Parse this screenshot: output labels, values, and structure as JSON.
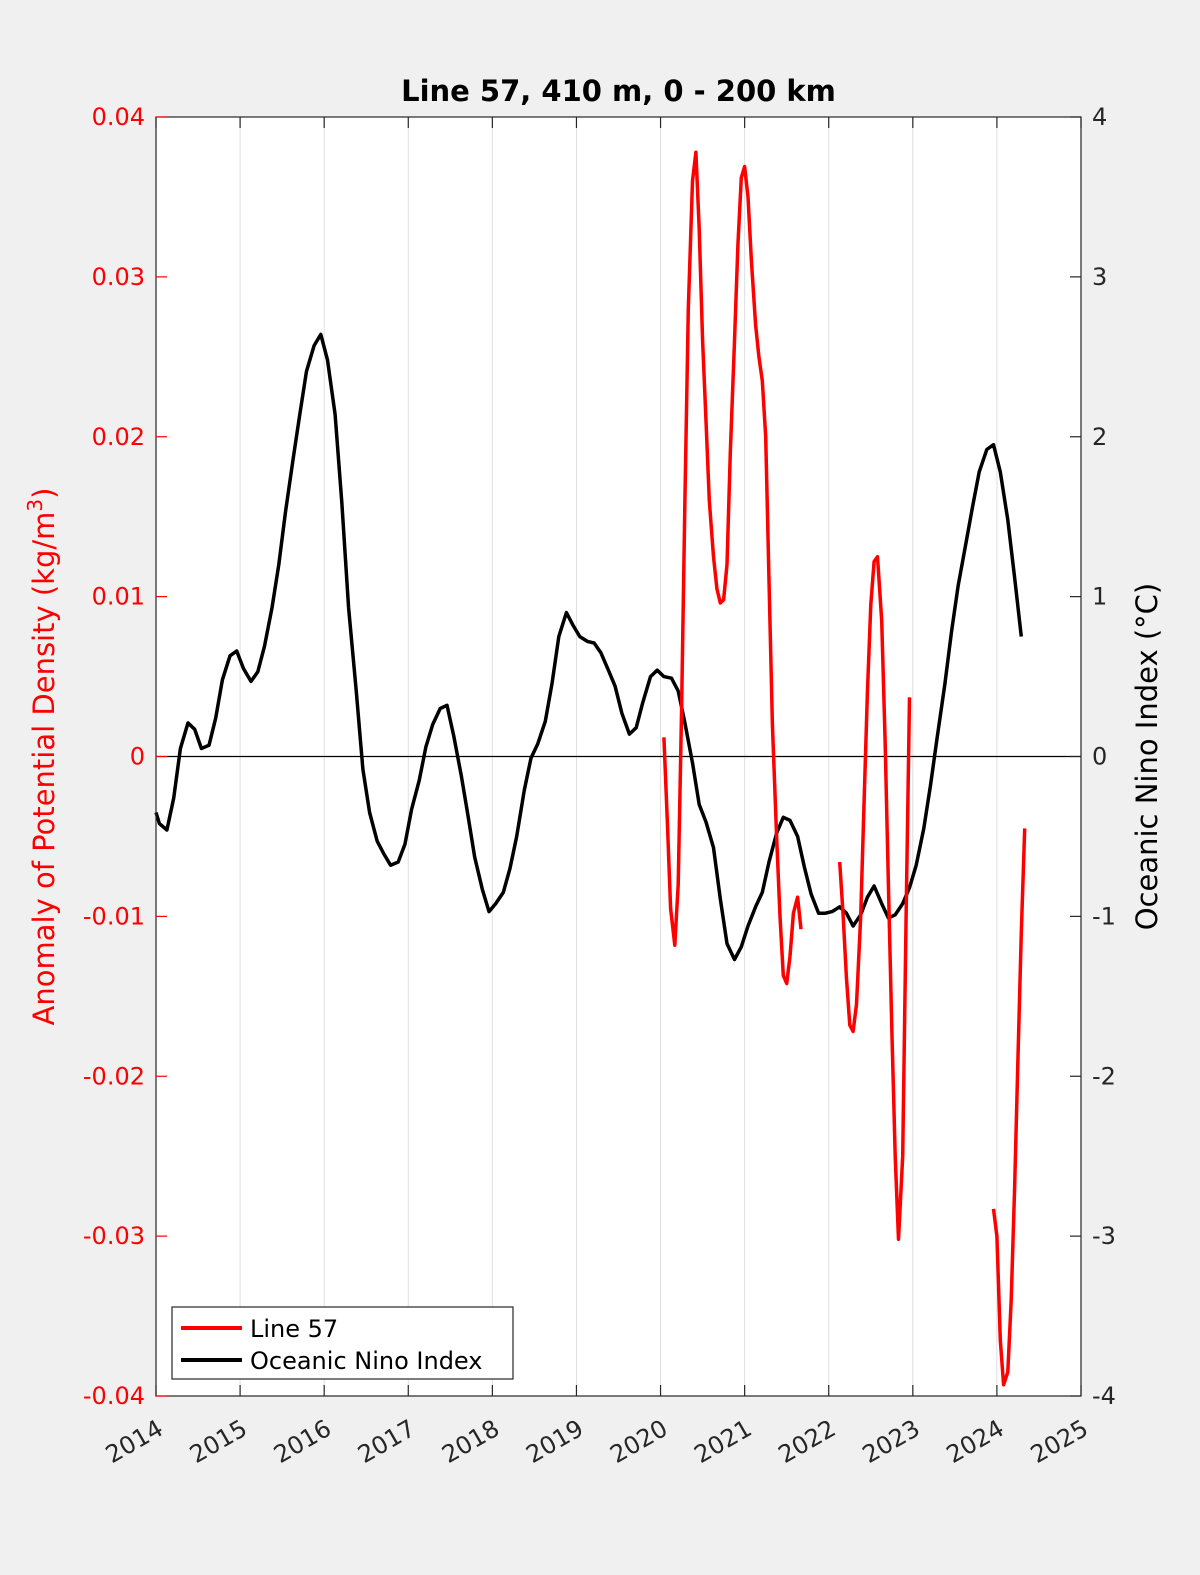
{
  "chart_data": {
    "type": "line",
    "title": "Line 57, 410 m, 0 - 200 km",
    "xlabel": "",
    "ylabel_left": "Anomaly of Potential Density (kg/m",
    "ylabel_left_sup": "3",
    "ylabel_left_close": ")",
    "ylabel_right": "Oceanic Nino Index (°C)",
    "xlim": [
      2014,
      2025
    ],
    "ylim_left": [
      -0.04,
      0.04
    ],
    "ylim_right": [
      -4,
      4
    ],
    "x_ticks": [
      "2014",
      "2015",
      "2016",
      "2017",
      "2018",
      "2019",
      "2020",
      "2021",
      "2022",
      "2023",
      "2024",
      "2025"
    ],
    "y_left_ticks": [
      "-0.04",
      "-0.03",
      "-0.02",
      "-0.01",
      "0",
      "0.01",
      "0.02",
      "0.03",
      "0.04"
    ],
    "y_right_ticks": [
      "-4",
      "-3",
      "-2",
      "-1",
      "0",
      "1",
      "2",
      "3",
      "4"
    ],
    "grid": "x-major",
    "legend_position": "bottom-left",
    "colors": {
      "line57": "#ff0000",
      "oni": "#000000",
      "left_axis": "#ff0000",
      "right_axis": "#000000",
      "zero_line": "#000000"
    },
    "series": [
      {
        "name": "Line 57",
        "axis": "left",
        "segments": [
          [
            [
              2020.04,
              0.0012
            ],
            [
              2020.08,
              -0.004
            ],
            [
              2020.12,
              -0.0095
            ],
            [
              2020.17,
              -0.0118
            ],
            [
              2020.21,
              -0.008
            ],
            [
              2020.25,
              0.003
            ],
            [
              2020.29,
              0.016
            ],
            [
              2020.33,
              0.028
            ],
            [
              2020.38,
              0.036
            ],
            [
              2020.42,
              0.0378
            ],
            [
              2020.46,
              0.033
            ],
            [
              2020.5,
              0.026
            ],
            [
              2020.54,
              0.021
            ],
            [
              2020.58,
              0.016
            ],
            [
              2020.63,
              0.0125
            ],
            [
              2020.67,
              0.0105
            ],
            [
              2020.71,
              0.0096
            ],
            [
              2020.75,
              0.0098
            ],
            [
              2020.79,
              0.012
            ],
            [
              2020.83,
              0.019
            ],
            [
              2020.88,
              0.026
            ],
            [
              2020.92,
              0.032
            ],
            [
              2020.96,
              0.0362
            ],
            [
              2021.0,
              0.0369
            ],
            [
              2021.04,
              0.035
            ],
            [
              2021.08,
              0.031
            ],
            [
              2021.13,
              0.027
            ],
            [
              2021.17,
              0.025
            ],
            [
              2021.21,
              0.0235
            ],
            [
              2021.25,
              0.02
            ],
            [
              2021.29,
              0.011
            ],
            [
              2021.33,
              0.002
            ],
            [
              2021.38,
              -0.005
            ],
            [
              2021.42,
              -0.01
            ],
            [
              2021.46,
              -0.0137
            ],
            [
              2021.5,
              -0.0142
            ],
            [
              2021.54,
              -0.0125
            ],
            [
              2021.58,
              -0.0098
            ],
            [
              2021.63,
              -0.0088
            ],
            [
              2021.67,
              -0.0108
            ]
          ],
          [
            [
              2022.13,
              -0.0066
            ],
            [
              2022.17,
              -0.0098
            ],
            [
              2022.21,
              -0.0138
            ],
            [
              2022.25,
              -0.0168
            ],
            [
              2022.29,
              -0.0172
            ],
            [
              2022.33,
              -0.0155
            ],
            [
              2022.38,
              -0.01
            ],
            [
              2022.42,
              -0.003
            ],
            [
              2022.46,
              0.004
            ],
            [
              2022.5,
              0.0095
            ],
            [
              2022.54,
              0.0122
            ],
            [
              2022.58,
              0.0125
            ],
            [
              2022.63,
              0.0085
            ],
            [
              2022.67,
              0.001
            ],
            [
              2022.71,
              -0.008
            ],
            [
              2022.75,
              -0.017
            ],
            [
              2022.79,
              -0.025
            ],
            [
              2022.83,
              -0.0302
            ],
            [
              2022.88,
              -0.025
            ],
            [
              2022.92,
              -0.01
            ],
            [
              2022.96,
              0.0037
            ]
          ],
          [
            [
              2023.96,
              -0.0283
            ],
            [
              2024.0,
              -0.03
            ],
            [
              2024.04,
              -0.0365
            ],
            [
              2024.08,
              -0.0393
            ],
            [
              2024.13,
              -0.0385
            ],
            [
              2024.17,
              -0.034
            ],
            [
              2024.21,
              -0.027
            ],
            [
              2024.25,
              -0.019
            ],
            [
              2024.29,
              -0.011
            ],
            [
              2024.33,
              -0.0045
            ]
          ]
        ]
      },
      {
        "name": "Oceanic Nino Index",
        "axis": "right",
        "points": [
          [
            2014.0,
            -0.35
          ],
          [
            2014.04,
            -0.42
          ],
          [
            2014.13,
            -0.46
          ],
          [
            2014.21,
            -0.26
          ],
          [
            2014.29,
            0.05
          ],
          [
            2014.38,
            0.21
          ],
          [
            2014.46,
            0.17
          ],
          [
            2014.54,
            0.05
          ],
          [
            2014.63,
            0.07
          ],
          [
            2014.71,
            0.24
          ],
          [
            2014.79,
            0.48
          ],
          [
            2014.88,
            0.63
          ],
          [
            2014.96,
            0.66
          ],
          [
            2015.04,
            0.55
          ],
          [
            2015.13,
            0.47
          ],
          [
            2015.21,
            0.53
          ],
          [
            2015.29,
            0.69
          ],
          [
            2015.38,
            0.93
          ],
          [
            2015.46,
            1.2
          ],
          [
            2015.54,
            1.53
          ],
          [
            2015.63,
            1.86
          ],
          [
            2015.71,
            2.14
          ],
          [
            2015.79,
            2.41
          ],
          [
            2015.88,
            2.57
          ],
          [
            2015.96,
            2.64
          ],
          [
            2016.04,
            2.48
          ],
          [
            2016.13,
            2.14
          ],
          [
            2016.21,
            1.59
          ],
          [
            2016.29,
            0.93
          ],
          [
            2016.38,
            0.42
          ],
          [
            2016.46,
            -0.08
          ],
          [
            2016.54,
            -0.35
          ],
          [
            2016.63,
            -0.53
          ],
          [
            2016.71,
            -0.61
          ],
          [
            2016.79,
            -0.68
          ],
          [
            2016.88,
            -0.66
          ],
          [
            2016.96,
            -0.55
          ],
          [
            2017.04,
            -0.33
          ],
          [
            2017.13,
            -0.15
          ],
          [
            2017.21,
            0.06
          ],
          [
            2017.29,
            0.2
          ],
          [
            2017.38,
            0.3
          ],
          [
            2017.46,
            0.32
          ],
          [
            2017.54,
            0.13
          ],
          [
            2017.63,
            -0.12
          ],
          [
            2017.71,
            -0.37
          ],
          [
            2017.79,
            -0.63
          ],
          [
            2017.88,
            -0.83
          ],
          [
            2017.96,
            -0.97
          ],
          [
            2018.04,
            -0.92
          ],
          [
            2018.13,
            -0.85
          ],
          [
            2018.21,
            -0.7
          ],
          [
            2018.29,
            -0.5
          ],
          [
            2018.38,
            -0.21
          ],
          [
            2018.46,
            -0.01
          ],
          [
            2018.54,
            0.08
          ],
          [
            2018.63,
            0.22
          ],
          [
            2018.71,
            0.46
          ],
          [
            2018.79,
            0.75
          ],
          [
            2018.88,
            0.9
          ],
          [
            2018.96,
            0.82
          ],
          [
            2019.04,
            0.75
          ],
          [
            2019.13,
            0.72
          ],
          [
            2019.21,
            0.71
          ],
          [
            2019.29,
            0.65
          ],
          [
            2019.38,
            0.54
          ],
          [
            2019.46,
            0.44
          ],
          [
            2019.54,
            0.27
          ],
          [
            2019.63,
            0.14
          ],
          [
            2019.71,
            0.18
          ],
          [
            2019.79,
            0.34
          ],
          [
            2019.88,
            0.5
          ],
          [
            2019.96,
            0.54
          ],
          [
            2020.04,
            0.5
          ],
          [
            2020.13,
            0.49
          ],
          [
            2020.21,
            0.41
          ],
          [
            2020.29,
            0.21
          ],
          [
            2020.38,
            -0.04
          ],
          [
            2020.46,
            -0.3
          ],
          [
            2020.54,
            -0.41
          ],
          [
            2020.63,
            -0.57
          ],
          [
            2020.71,
            -0.89
          ],
          [
            2020.79,
            -1.17
          ],
          [
            2020.88,
            -1.27
          ],
          [
            2020.96,
            -1.19
          ],
          [
            2021.04,
            -1.06
          ],
          [
            2021.13,
            -0.94
          ],
          [
            2021.21,
            -0.85
          ],
          [
            2021.29,
            -0.66
          ],
          [
            2021.38,
            -0.48
          ],
          [
            2021.46,
            -0.38
          ],
          [
            2021.54,
            -0.4
          ],
          [
            2021.63,
            -0.5
          ],
          [
            2021.71,
            -0.69
          ],
          [
            2021.79,
            -0.86
          ],
          [
            2021.88,
            -0.98
          ],
          [
            2021.96,
            -0.98
          ],
          [
            2022.04,
            -0.97
          ],
          [
            2022.13,
            -0.94
          ],
          [
            2022.21,
            -0.98
          ],
          [
            2022.29,
            -1.06
          ],
          [
            2022.38,
            -0.99
          ],
          [
            2022.46,
            -0.88
          ],
          [
            2022.54,
            -0.81
          ],
          [
            2022.63,
            -0.92
          ],
          [
            2022.71,
            -1.01
          ],
          [
            2022.79,
            -0.99
          ],
          [
            2022.88,
            -0.92
          ],
          [
            2022.96,
            -0.82
          ],
          [
            2023.04,
            -0.68
          ],
          [
            2023.13,
            -0.45
          ],
          [
            2023.21,
            -0.18
          ],
          [
            2023.29,
            0.12
          ],
          [
            2023.38,
            0.45
          ],
          [
            2023.46,
            0.78
          ],
          [
            2023.54,
            1.07
          ],
          [
            2023.63,
            1.33
          ],
          [
            2023.71,
            1.56
          ],
          [
            2023.79,
            1.78
          ],
          [
            2023.88,
            1.92
          ],
          [
            2023.96,
            1.95
          ],
          [
            2024.04,
            1.78
          ],
          [
            2024.13,
            1.48
          ],
          [
            2024.21,
            1.12
          ],
          [
            2024.29,
            0.75
          ]
        ]
      }
    ]
  }
}
